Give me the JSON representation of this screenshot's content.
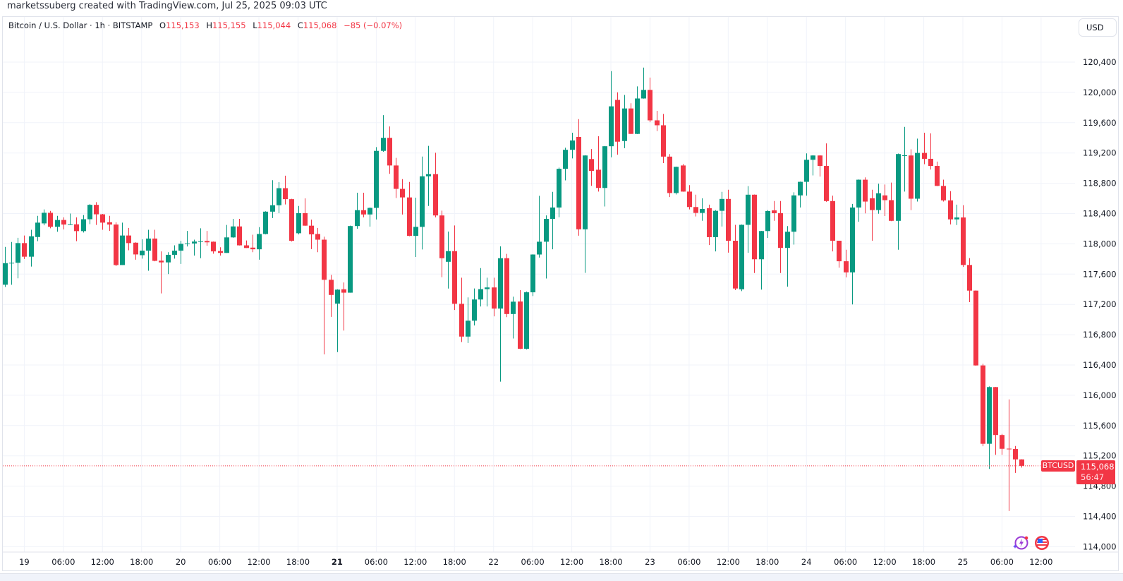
{
  "credit": "marketssuberg created with TradingView.com, Jul 25, 2025 09:03 UTC",
  "legend": {
    "symbol": "Bitcoin / U.S. Dollar · 1h · BITSTAMP",
    "o_label": "O",
    "o": "115,153",
    "h_label": "H",
    "h": "115,155",
    "l_label": "L",
    "l": "115,044",
    "c_label": "C",
    "c": "115,068",
    "change": "−85 (−0.07%)"
  },
  "currency_button": "USD",
  "last_price": {
    "symbol": "BTCUSD",
    "price": "115,068",
    "countdown": "56:47"
  },
  "colors": {
    "up": "#089981",
    "down": "#f23645",
    "grid": "#f0f3fa"
  },
  "icons": [
    "lightning-icon",
    "us-flag-icon"
  ],
  "chart_data": {
    "type": "candlestick",
    "interval": "1h",
    "ylim": [
      114000,
      120400
    ],
    "grid": true,
    "yticks": [
      "120,400",
      "120,000",
      "119,600",
      "119,200",
      "118,800",
      "118,400",
      "118,000",
      "117,600",
      "117,200",
      "116,800",
      "116,400",
      "116,000",
      "115,600",
      "115,200",
      "114,800",
      "114,400",
      "114,000"
    ],
    "ytick_values": [
      120400,
      120000,
      119600,
      119200,
      118800,
      118400,
      118000,
      117600,
      117200,
      116800,
      116400,
      116000,
      115600,
      115200,
      114800,
      114400,
      114000
    ],
    "xticks": [
      "19",
      "06:00",
      "12:00",
      "18:00",
      "20",
      "06:00",
      "12:00",
      "18:00",
      "21",
      "06:00",
      "12:00",
      "18:00",
      "22",
      "06:00",
      "12:00",
      "18:00",
      "23",
      "06:00",
      "12:00",
      "18:00",
      "24",
      "06:00",
      "12:00",
      "18:00",
      "25",
      "06:00",
      "12:00"
    ],
    "xtick_bold": [
      "21"
    ],
    "last_value": 115068,
    "ohlc": [
      [
        117460,
        117960,
        117430,
        117745
      ],
      [
        117745,
        118025,
        117460,
        117750
      ],
      [
        117750,
        118080,
        117545,
        118010
      ],
      [
        118010,
        118110,
        117800,
        117830
      ],
      [
        117830,
        118185,
        117700,
        118100
      ],
      [
        118090,
        118370,
        118035,
        118280
      ],
      [
        118270,
        118455,
        118245,
        118410
      ],
      [
        118410,
        118435,
        118205,
        118225
      ],
      [
        118225,
        118370,
        118160,
        118315
      ],
      [
        118315,
        118350,
        118190,
        118255
      ],
      [
        118255,
        118400,
        118250,
        118258
      ],
      [
        118258,
        118350,
        118035,
        118168
      ],
      [
        118168,
        118380,
        118150,
        118325
      ],
      [
        118325,
        118525,
        118260,
        118515
      ],
      [
        118515,
        118550,
        118250,
        118390
      ],
      [
        118390,
        118395,
        118185,
        118280
      ],
      [
        118285,
        118370,
        118170,
        118255
      ],
      [
        118255,
        118285,
        117705,
        117720
      ],
      [
        117720,
        118280,
        117720,
        118110
      ],
      [
        118110,
        118210,
        117915,
        118010
      ],
      [
        118015,
        118020,
        117790,
        117860
      ],
      [
        117850,
        118060,
        117805,
        117910
      ],
      [
        117910,
        118185,
        117645,
        118070
      ],
      [
        118070,
        118185,
        117770,
        117775
      ],
      [
        117778,
        117900,
        117345,
        117755
      ],
      [
        117755,
        117890,
        117600,
        117855
      ],
      [
        117855,
        117980,
        117805,
        117910
      ],
      [
        117910,
        118040,
        117735,
        118000
      ],
      [
        118000,
        118170,
        117965,
        118005
      ],
      [
        118005,
        118055,
        117845,
        118030
      ],
      [
        118030,
        118205,
        117810,
        118035
      ],
      [
        118038,
        118170,
        117975,
        118020
      ],
      [
        118028,
        118030,
        117870,
        117900
      ],
      [
        117905,
        117955,
        117845,
        117880
      ],
      [
        117880,
        118250,
        117880,
        118085
      ],
      [
        118085,
        118330,
        118080,
        118230
      ],
      [
        118230,
        118330,
        117978,
        117980
      ],
      [
        117980,
        118045,
        117945,
        117945
      ],
      [
        117950,
        118120,
        117890,
        117928
      ],
      [
        117928,
        118220,
        117790,
        118130
      ],
      [
        118130,
        118430,
        118125,
        118425
      ],
      [
        118425,
        118840,
        118340,
        118510
      ],
      [
        118510,
        118815,
        118405,
        118735
      ],
      [
        118735,
        118900,
        118520,
        118590
      ],
      [
        118590,
        118595,
        118030,
        118040
      ],
      [
        118140,
        118500,
        118125,
        118405
      ],
      [
        118405,
        118600,
        118238,
        118240
      ],
      [
        118240,
        118320,
        117930,
        118125
      ],
      [
        118130,
        118210,
        117890,
        118055
      ],
      [
        118055,
        118095,
        116540,
        117525
      ],
      [
        117525,
        117590,
        117035,
        117325
      ],
      [
        117210,
        117400,
        116570,
        117395
      ],
      [
        117400,
        117490,
        116855,
        117355
      ],
      [
        117355,
        118240,
        117355,
        118235
      ],
      [
        118235,
        118675,
        118200,
        118445
      ],
      [
        118445,
        118675,
        118350,
        118388
      ],
      [
        118388,
        118480,
        118228,
        118475
      ],
      [
        118475,
        119278,
        118322,
        119228
      ],
      [
        119228,
        119700,
        119216,
        119400
      ],
      [
        119400,
        119550,
        118925,
        119035
      ],
      [
        119035,
        119135,
        118605,
        118726
      ],
      [
        118726,
        118855,
        118387,
        118613
      ],
      [
        118613,
        118817,
        118100,
        118105
      ],
      [
        118105,
        118610,
        117826,
        118224
      ],
      [
        118224,
        119153,
        117926,
        118892
      ],
      [
        118892,
        119294,
        118500,
        118921
      ],
      [
        118921,
        119203,
        118350,
        118375
      ],
      [
        118375,
        118438,
        117560,
        117810
      ],
      [
        117763,
        118162,
        117409,
        117904
      ],
      [
        117904,
        118243,
        117126,
        117208
      ],
      [
        117208,
        117553,
        116703,
        116775
      ],
      [
        116775,
        117293,
        116690,
        116985
      ],
      [
        116985,
        117410,
        116922,
        117265
      ],
      [
        117265,
        117680,
        117173,
        117402
      ],
      [
        117402,
        117553,
        117173,
        117424
      ],
      [
        117424,
        117553,
        117042,
        117145
      ],
      [
        117145,
        117967,
        116180,
        117810
      ],
      [
        117810,
        117867,
        117032,
        117073
      ],
      [
        117073,
        117302,
        116750,
        117236
      ],
      [
        117238,
        117388,
        116610,
        116614
      ],
      [
        116614,
        117370,
        116605,
        117360
      ],
      [
        117360,
        117862,
        117310,
        117859
      ],
      [
        117859,
        118634,
        117818,
        118028
      ],
      [
        118028,
        118376,
        117542,
        118330
      ],
      [
        118330,
        118687,
        117928,
        118480
      ],
      [
        118480,
        119007,
        118351,
        118991
      ],
      [
        118991,
        119270,
        118838,
        119242
      ],
      [
        119242,
        119468,
        119129,
        119365
      ],
      [
        119412,
        119647,
        118107,
        118192
      ],
      [
        118192,
        119170,
        117617,
        119167
      ],
      [
        119120,
        119252,
        118766,
        118963
      ],
      [
        118979,
        119421,
        118690,
        118738
      ],
      [
        118738,
        119292,
        118493,
        119289
      ],
      [
        119289,
        120281,
        119142,
        119816
      ],
      [
        119901,
        120001,
        119177,
        119349
      ],
      [
        119358,
        119967,
        119264,
        119788
      ],
      [
        119788,
        119857,
        119450,
        119452
      ],
      [
        119452,
        120080,
        119450,
        119920
      ],
      [
        119920,
        120328,
        119918,
        120033
      ],
      [
        120033,
        120196,
        119606,
        119631
      ],
      [
        119631,
        119757,
        119490,
        119566
      ],
      [
        119566,
        119716,
        119067,
        119152
      ],
      [
        119152,
        119186,
        118618,
        118671
      ],
      [
        118671,
        119020,
        118652,
        119017
      ],
      [
        119035,
        119054,
        118688,
        118690
      ],
      [
        118690,
        118775,
        118455,
        118486
      ],
      [
        118486,
        118649,
        118361,
        118408
      ],
      [
        118408,
        118602,
        118304,
        118461
      ],
      [
        118471,
        118518,
        117984,
        118088
      ],
      [
        118088,
        118445,
        117900,
        118436
      ],
      [
        118436,
        118687,
        118229,
        118593
      ],
      [
        118593,
        118715,
        117884,
        118041
      ],
      [
        118041,
        118251,
        117388,
        117410
      ],
      [
        117400,
        118255,
        117375,
        118251
      ],
      [
        118251,
        118762,
        117881,
        118649
      ],
      [
        118649,
        118652,
        117614,
        117796
      ],
      [
        117796,
        118172,
        117395,
        118169
      ],
      [
        118169,
        118445,
        118078,
        118433
      ],
      [
        118442,
        118565,
        118304,
        118405
      ],
      [
        118405,
        118565,
        117614,
        117946
      ],
      [
        117946,
        118235,
        117435,
        118160
      ],
      [
        118160,
        118681,
        117990,
        118640
      ],
      [
        118640,
        118822,
        118480,
        118819
      ],
      [
        118819,
        119195,
        118637,
        119110
      ],
      [
        119110,
        119170,
        118903,
        119167
      ],
      [
        119167,
        119170,
        118888,
        119029
      ],
      [
        119029,
        119327,
        118555,
        118565
      ],
      [
        118565,
        118637,
        117900,
        118041
      ],
      [
        118041,
        118041,
        117685,
        117770
      ],
      [
        117770,
        117922,
        117557,
        117623
      ],
      [
        117623,
        118527,
        117200,
        118480
      ],
      [
        118480,
        118850,
        118292,
        118847
      ],
      [
        118847,
        118878,
        118402,
        118558
      ],
      [
        118602,
        118715,
        118041,
        118446
      ],
      [
        118446,
        118794,
        118398,
        118668
      ],
      [
        118640,
        118784,
        118367,
        118577
      ],
      [
        118577,
        118809,
        118300,
        118304
      ],
      [
        118304,
        119192,
        117922,
        119186
      ],
      [
        119160,
        119544,
        118690,
        119170
      ],
      [
        119167,
        119249,
        118446,
        118596
      ],
      [
        118596,
        119390,
        118558,
        119201
      ],
      [
        119201,
        119468,
        119051,
        119123
      ],
      [
        119123,
        119459,
        118982,
        119029
      ],
      [
        119029,
        119086,
        118762,
        118765
      ],
      [
        118765,
        118847,
        118558,
        118574
      ],
      [
        118574,
        118696,
        118257,
        118323
      ],
      [
        118323,
        118518,
        118248,
        118348
      ],
      [
        118348,
        118511,
        117695,
        117721
      ],
      [
        117721,
        117812,
        117230,
        117382
      ],
      [
        117382,
        117385,
        116390,
        116394
      ],
      [
        116394,
        116416,
        115327,
        115359
      ],
      [
        115359,
        116117,
        115027,
        116108
      ],
      [
        116108,
        116110,
        115214,
        115475
      ],
      [
        115475,
        115490,
        115214,
        115293
      ],
      [
        115295,
        115945,
        114471,
        115290
      ],
      [
        115290,
        115330,
        114975,
        115153
      ],
      [
        115153,
        115155,
        115044,
        115068
      ]
    ]
  }
}
